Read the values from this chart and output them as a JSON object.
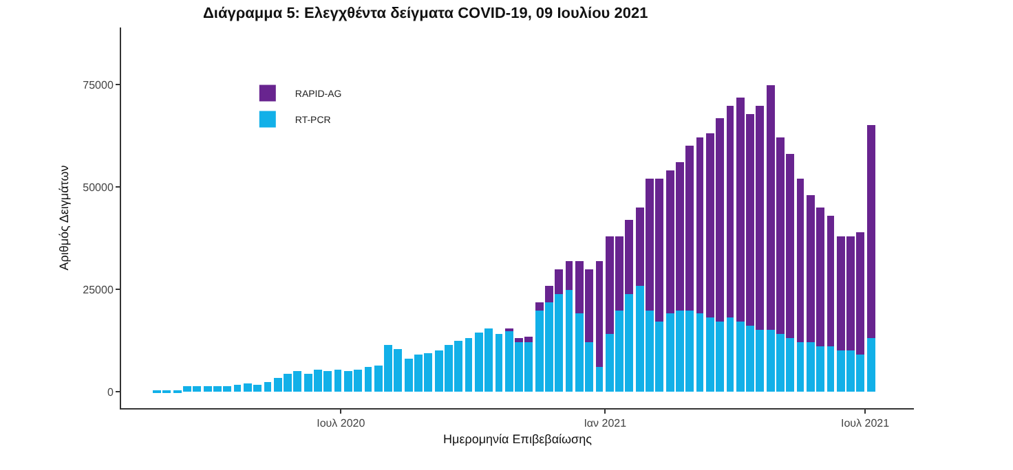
{
  "chart_data": {
    "type": "bar",
    "title": "Διάγραμμα 5: Ελεγχθέντα δείγματα COVID-19, 09 Ιουλίου 2021",
    "xlabel": "Ημερομηνία Επιβεβαίωσης",
    "ylabel": "Αριθμός Δειγμάτων",
    "stacked": true,
    "legend": "top left",
    "grid": false,
    "x": [
      "2020-02-24",
      "2020-03-02",
      "2020-03-09",
      "2020-03-16",
      "2020-03-23",
      "2020-03-30",
      "2020-04-06",
      "2020-04-13",
      "2020-04-20",
      "2020-04-27",
      "2020-05-04",
      "2020-05-11",
      "2020-05-18",
      "2020-05-25",
      "2020-06-01",
      "2020-06-08",
      "2020-06-15",
      "2020-06-22",
      "2020-06-29",
      "2020-07-06",
      "2020-07-13",
      "2020-07-20",
      "2020-07-27",
      "2020-08-03",
      "2020-08-10",
      "2020-08-17",
      "2020-08-24",
      "2020-08-31",
      "2020-09-07",
      "2020-09-14",
      "2020-09-21",
      "2020-09-28",
      "2020-10-05",
      "2020-10-12",
      "2020-10-19",
      "2020-10-26",
      "2020-11-02",
      "2020-11-09",
      "2020-11-16",
      "2020-11-23",
      "2020-11-30",
      "2020-12-07",
      "2020-12-14",
      "2020-12-21",
      "2020-12-28",
      "2021-01-04",
      "2021-01-11",
      "2021-01-18",
      "2021-01-25",
      "2021-02-01",
      "2021-02-08",
      "2021-02-15",
      "2021-02-22",
      "2021-03-01",
      "2021-03-08",
      "2021-03-15",
      "2021-03-22",
      "2021-03-29",
      "2021-04-05",
      "2021-04-12",
      "2021-04-19",
      "2021-04-26",
      "2021-05-03",
      "2021-05-10",
      "2021-05-17",
      "2021-05-24",
      "2021-05-31",
      "2021-06-07",
      "2021-06-14",
      "2021-06-21",
      "2021-06-28",
      "2021-07-05"
    ],
    "xlim": [
      "2020-01-30",
      "2021-08-04"
    ],
    "xticks": [
      {
        "value": "2020-07-01",
        "label": "Ιουλ 2020"
      },
      {
        "value": "2021-01-01",
        "label": "Ιαν 2021"
      },
      {
        "value": "2021-07-01",
        "label": "Ιουλ 2021"
      }
    ],
    "ylim": [
      -4000,
      89000
    ],
    "yticks": [
      0,
      25000,
      50000,
      75000
    ],
    "series": [
      {
        "name": "RT-PCR",
        "color": "#12b0e8",
        "values": [
          300,
          300,
          500,
          1500,
          1300,
          1400,
          1300,
          1500,
          1600,
          2200,
          1800,
          2500,
          3500,
          4500,
          5000,
          4500,
          5500,
          5000,
          5500,
          5000,
          5500,
          6000,
          6500,
          11500,
          10500,
          8000,
          9000,
          9500,
          10000,
          11500,
          12500,
          13000,
          14500,
          15500,
          14000,
          15000,
          12000,
          12000,
          20000,
          22000,
          24000,
          25000,
          19000,
          12000,
          6000,
          14000,
          20000,
          24000,
          26000,
          20000,
          17000,
          19000,
          20000,
          20000,
          19000,
          18000,
          17000,
          18000,
          17000,
          16000,
          15000,
          15000,
          14000,
          13000,
          12000,
          12000,
          11000,
          11000,
          10000,
          10000,
          9000,
          13000
        ]
      },
      {
        "name": "RAPID-AG",
        "color": "#68248f",
        "values": [
          0,
          0,
          0,
          0,
          0,
          0,
          0,
          0,
          0,
          0,
          0,
          0,
          0,
          0,
          0,
          0,
          0,
          0,
          0,
          0,
          0,
          0,
          0,
          0,
          0,
          0,
          0,
          0,
          0,
          0,
          0,
          0,
          0,
          0,
          0,
          500,
          1000,
          1500,
          2000,
          4000,
          6000,
          7000,
          13000,
          18000,
          26000,
          24000,
          18000,
          18000,
          19000,
          32000,
          35000,
          35000,
          36000,
          40000,
          43000,
          45000,
          50000,
          52000,
          55000,
          52000,
          55000,
          60000,
          48000,
          45000,
          40000,
          36000,
          34000,
          32000,
          28000,
          28000,
          30000,
          52000
        ]
      }
    ]
  }
}
